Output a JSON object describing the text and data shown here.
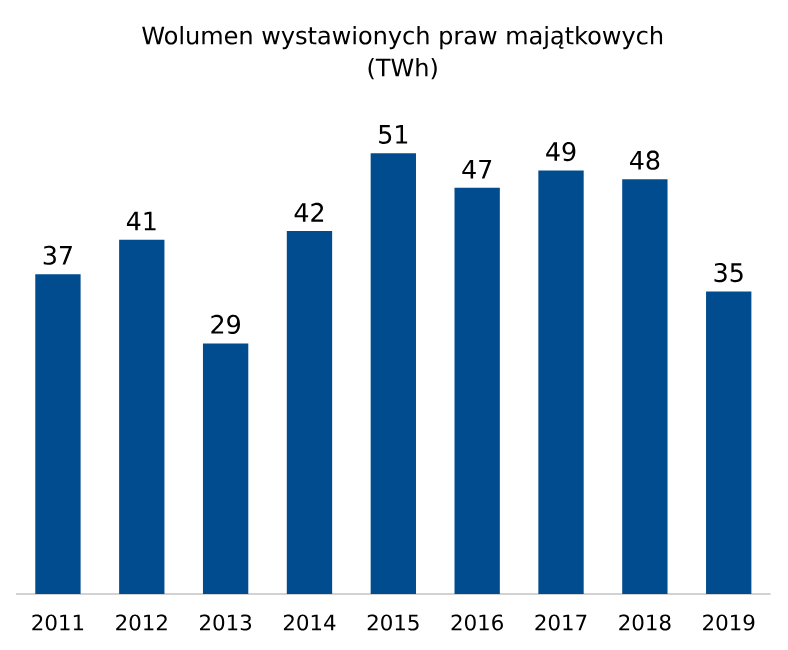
{
  "chart_data": {
    "type": "bar",
    "title": "Wolumen wystawionych praw majątkowych",
    "subtitle": "(TWh)",
    "categories": [
      "2011",
      "2012",
      "2013",
      "2014",
      "2015",
      "2016",
      "2017",
      "2018",
      "2019"
    ],
    "values": [
      37,
      41,
      29,
      42,
      51,
      47,
      49,
      48,
      35
    ],
    "color": "#004c8f",
    "data_labels": true
  }
}
